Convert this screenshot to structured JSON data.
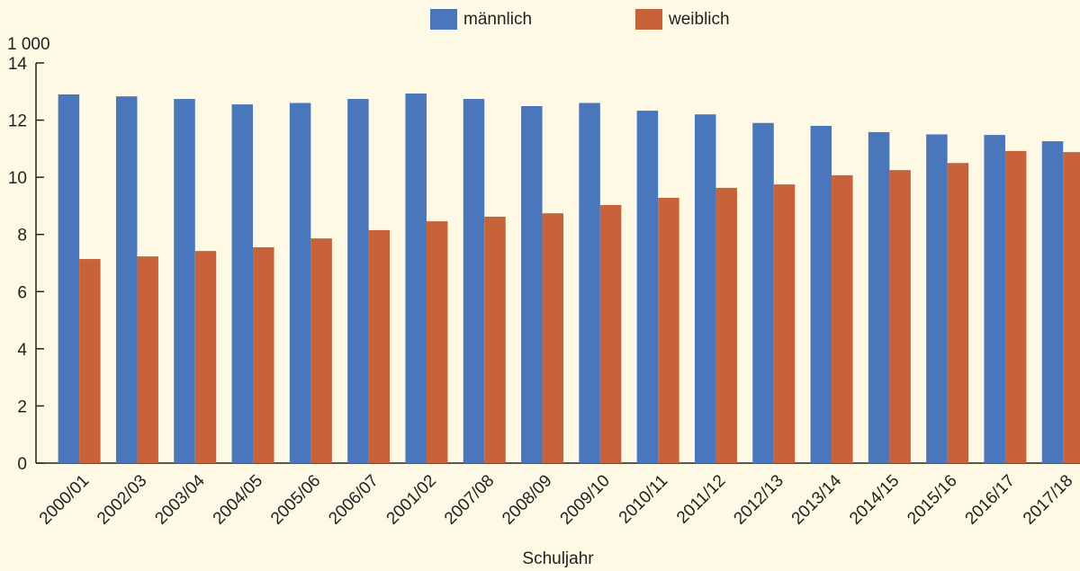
{
  "chart_data": {
    "type": "bar",
    "unit_label": "1 000",
    "x_label": "Schuljahr",
    "categories": [
      "2000/01",
      "2002/03",
      "2003/04",
      "2004/05",
      "2005/06",
      "2006/07",
      "2001/02",
      "2007/08",
      "2008/09",
      "2009/10",
      "2010/11",
      "2011/12",
      "2012/13",
      "2013/14",
      "2014/15",
      "2015/16",
      "2016/17",
      "2017/18"
    ],
    "series": [
      {
        "name": "männlich",
        "color": "#4a76bc",
        "values": [
          12.9,
          12.83,
          12.74,
          12.55,
          12.6,
          12.74,
          12.93,
          12.74,
          12.49,
          12.6,
          12.33,
          12.2,
          11.9,
          11.8,
          11.58,
          11.5,
          11.48,
          11.26
        ]
      },
      {
        "name": "weiblich",
        "color": "#c8623a",
        "values": [
          7.14,
          7.23,
          7.42,
          7.55,
          7.86,
          8.15,
          8.46,
          8.62,
          8.74,
          9.03,
          9.28,
          9.63,
          9.75,
          10.07,
          10.25,
          10.5,
          10.92,
          10.88
        ]
      }
    ],
    "ylim": [
      0,
      14
    ],
    "yticks": [
      0,
      2,
      4,
      6,
      8,
      10,
      12,
      14
    ],
    "legend": "top"
  }
}
